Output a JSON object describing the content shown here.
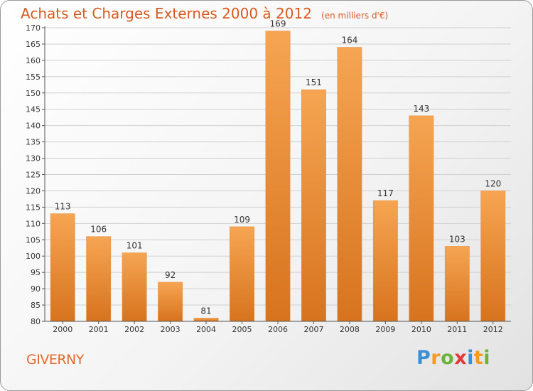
{
  "header": {
    "title": "Achats et Charges Externes 2000 à 2012",
    "unit": "(en milliers d'€)"
  },
  "footer": {
    "commune": "GIVERNY",
    "logo_letters": [
      "P",
      "r",
      "o",
      "x",
      "i",
      "t",
      "i"
    ],
    "logo_colors": [
      "#3a8fd8",
      "#f39a1f",
      "#6cb33e",
      "#e23a3a",
      "#3a8fd8",
      "#f39a1f",
      "#6cb33e"
    ]
  },
  "colors": {
    "bar_light": "#f6a552",
    "bar_dark": "#d7731e",
    "grid": "#d0d0d0",
    "axis": "#555555",
    "title": "#d85a20"
  },
  "chart_data": {
    "type": "bar",
    "title": "Achats et Charges Externes 2000 à 2012",
    "subtitle": "(en milliers d'€)",
    "xlabel": "",
    "ylabel": "",
    "categories": [
      "2000",
      "2001",
      "2002",
      "2003",
      "2004",
      "2005",
      "2006",
      "2007",
      "2008",
      "2009",
      "2010",
      "2011",
      "2012"
    ],
    "values": [
      113,
      106,
      101,
      92,
      81,
      109,
      169,
      151,
      164,
      117,
      143,
      103,
      120
    ],
    "ylim": [
      80,
      170
    ],
    "ytick_step": 5,
    "grid": true,
    "legend": "none"
  }
}
